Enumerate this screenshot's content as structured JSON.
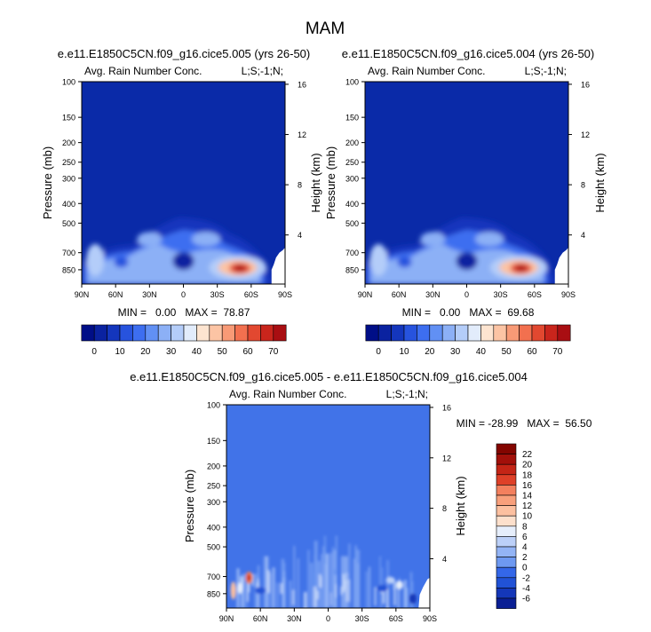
{
  "title": "MAM",
  "colors": {
    "bg_dark": "#0a2aa8",
    "diff_bg": "#4173e8",
    "scale": [
      "#000e87",
      "#0a22a0",
      "#1436bd",
      "#2753de",
      "#3d6ef0",
      "#6190f4",
      "#8cb0f6",
      "#b4cdf9",
      "#e2ecfb",
      "#fde4d0",
      "#fcc4a4",
      "#f89a76",
      "#f2704f",
      "#e24830",
      "#c9251c",
      "#a90e12",
      "#7d0007"
    ],
    "diff_scale": [
      "#0a1f94",
      "#1437b8",
      "#2152d6",
      "#3467e8",
      "#4e80ee",
      "#6e99f1",
      "#93b4f5",
      "#bcd0f8",
      "#e6eefb",
      "#fde0cc",
      "#fcc0a0",
      "#f8a07c",
      "#f3805e",
      "#ec6040",
      "#de4028",
      "#c42516",
      "#a2100a",
      "#830500"
    ]
  },
  "chart_data": [
    {
      "type": "heatmap",
      "title": "e.e11.E1850C5CN.f09_g16.cice5.005 (yrs 26-50)",
      "left_label": "Avg. Rain Number Conc.",
      "right_label": "L;S;-1;N;",
      "ylabel": "Pressure (mb)",
      "ylabel_right": "Height (km)",
      "x_ticks": [
        "90N",
        "60N",
        "30N",
        "0",
        "30S",
        "60S",
        "90S"
      ],
      "y_ticks": [
        "100",
        "150",
        "200",
        "250",
        "300",
        "400",
        "500",
        "700",
        "850"
      ],
      "y_ticks_right": [
        "16",
        "12",
        "8",
        "4"
      ],
      "stats": "MIN =   0.00   MAX =  78.87",
      "colorbar_labels": [
        "0",
        "10",
        "20",
        "30",
        "40",
        "50",
        "60",
        "70"
      ],
      "max": 78.87,
      "hotspot": {
        "lat": -48,
        "p": 830
      }
    },
    {
      "type": "heatmap",
      "title": "e.e11.E1850C5CN.f09_g16.cice5.004 (yrs 26-50)",
      "left_label": "Avg. Rain Number Conc.",
      "right_label": "L;S;-1;N;",
      "ylabel": "Pressure (mb)",
      "ylabel_right": "Height (km)",
      "x_ticks": [
        "90N",
        "60N",
        "30N",
        "0",
        "30S",
        "60S",
        "90S"
      ],
      "y_ticks": [
        "100",
        "150",
        "200",
        "250",
        "300",
        "400",
        "500",
        "700",
        "850"
      ],
      "y_ticks_right": [
        "16",
        "12",
        "8",
        "4"
      ],
      "stats": "MIN =   0.00   MAX =  69.68",
      "colorbar_labels": [
        "0",
        "10",
        "20",
        "30",
        "40",
        "50",
        "60",
        "70"
      ],
      "max": 69.68,
      "hotspot": {
        "lat": -46,
        "p": 830
      }
    },
    {
      "type": "heatmap",
      "title": "e.e11.E1850C5CN.f09_g16.cice5.005 - e.e11.E1850C5CN.f09_g16.cice5.004",
      "left_label": "Avg. Rain Number Conc.",
      "right_label": "L;S;-1;N;",
      "ylabel": "Pressure (mb)",
      "ylabel_right": "Height (km)",
      "x_ticks": [
        "90N",
        "60N",
        "30N",
        "0",
        "30S",
        "60S",
        "90S"
      ],
      "y_ticks": [
        "100",
        "150",
        "200",
        "250",
        "300",
        "400",
        "500",
        "700",
        "850"
      ],
      "y_ticks_right": [
        "16",
        "12",
        "8",
        "4"
      ],
      "stats": "MIN = -28.99   MAX =  56.50",
      "colorbar_labels": [
        "22",
        "20",
        "18",
        "16",
        "14",
        "12",
        "10",
        "8",
        "6",
        "4",
        "2",
        "0",
        "-2",
        "-4",
        "-6"
      ],
      "min": -28.99,
      "max": 56.5
    }
  ]
}
